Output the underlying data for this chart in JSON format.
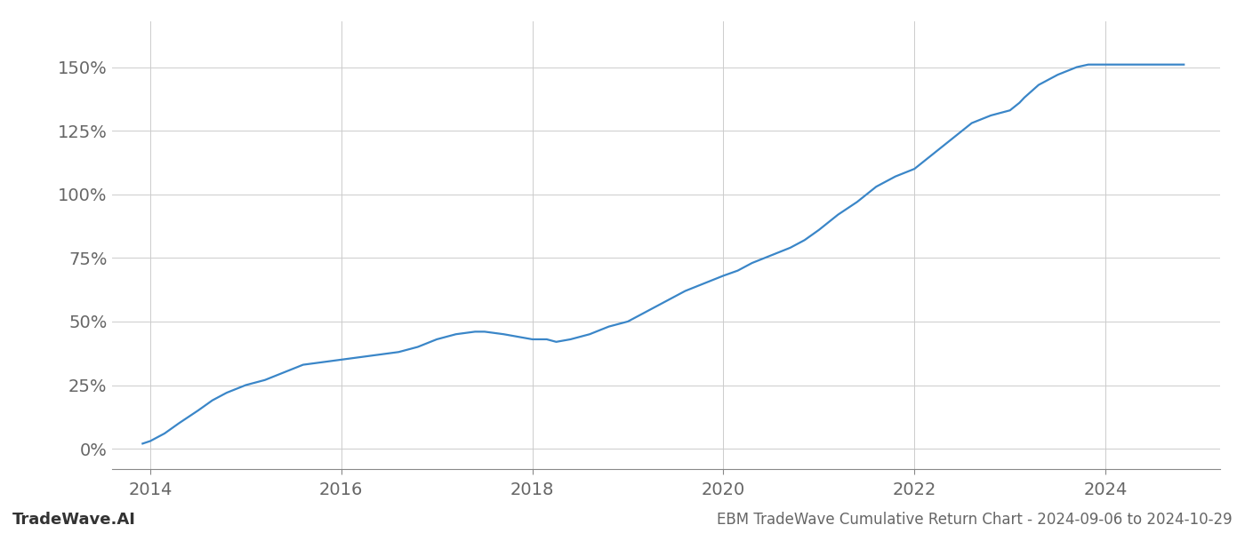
{
  "title": "EBM TradeWave Cumulative Return Chart - 2024-09-06 to 2024-10-29",
  "watermark": "TradeWave.AI",
  "line_color": "#3a86c8",
  "line_width": 1.6,
  "background_color": "#ffffff",
  "grid_color": "#cccccc",
  "yticks": [
    0,
    25,
    50,
    75,
    100,
    125,
    150
  ],
  "xlim": [
    2013.6,
    2025.2
  ],
  "ylim": [
    -8,
    168
  ],
  "xticks": [
    2014,
    2016,
    2018,
    2020,
    2022,
    2024
  ],
  "tick_fontsize": 14,
  "watermark_fontsize": 13,
  "title_fontsize": 12,
  "x_data": [
    2013.92,
    2014.0,
    2014.15,
    2014.3,
    2014.5,
    2014.65,
    2014.8,
    2015.0,
    2015.2,
    2015.4,
    2015.6,
    2015.8,
    2016.0,
    2016.2,
    2016.4,
    2016.6,
    2016.8,
    2017.0,
    2017.2,
    2017.4,
    2017.5,
    2017.7,
    2017.85,
    2018.0,
    2018.15,
    2018.25,
    2018.4,
    2018.6,
    2018.8,
    2019.0,
    2019.2,
    2019.4,
    2019.6,
    2019.8,
    2020.0,
    2020.15,
    2020.3,
    2020.5,
    2020.7,
    2020.85,
    2021.0,
    2021.2,
    2021.4,
    2021.6,
    2021.8,
    2022.0,
    2022.2,
    2022.4,
    2022.6,
    2022.8,
    2023.0,
    2023.1,
    2023.15,
    2023.3,
    2023.5,
    2023.7,
    2023.82,
    2024.0,
    2024.3,
    2024.82
  ],
  "y_data": [
    2,
    3,
    6,
    10,
    15,
    19,
    22,
    25,
    27,
    30,
    33,
    34,
    35,
    36,
    37,
    38,
    40,
    43,
    45,
    46,
    46,
    45,
    44,
    43,
    43,
    42,
    43,
    45,
    48,
    50,
    54,
    58,
    62,
    65,
    68,
    70,
    73,
    76,
    79,
    82,
    86,
    92,
    97,
    103,
    107,
    110,
    116,
    122,
    128,
    131,
    133,
    136,
    138,
    143,
    147,
    150,
    151,
    151,
    151,
    151
  ]
}
